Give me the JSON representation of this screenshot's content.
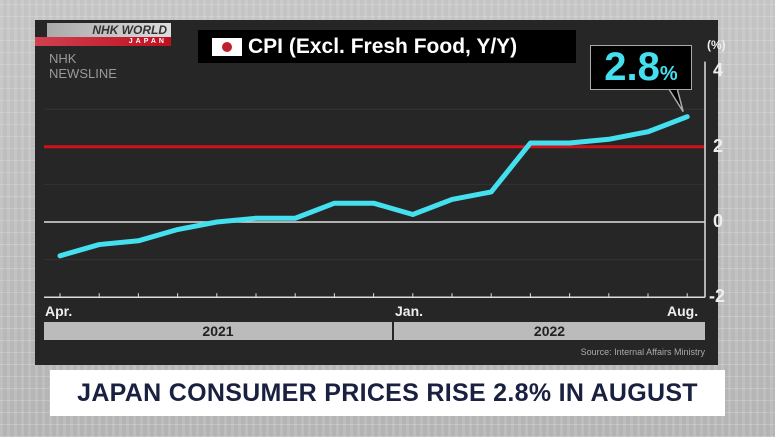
{
  "branding": {
    "nhk_world": "NHK WORLD",
    "japan": "JAPAN",
    "program": "NHK NEWSLINE"
  },
  "chart_title": "CPI (Excl. Fresh Food, Y/Y)",
  "callout": {
    "value": "2.8",
    "unit": "%"
  },
  "headline": "JAPAN CONSUMER PRICES RISE 2.8% IN AUGUST",
  "chart_data": {
    "type": "line",
    "title": "CPI (Excl. Fresh Food, Y/Y)",
    "ylabel": "(%)",
    "ylim": [
      -2,
      4
    ],
    "yticks": [
      "4",
      "2",
      "0",
      "-2"
    ],
    "x": [
      "Apr 2021",
      "May 2021",
      "Jun 2021",
      "Jul 2021",
      "Aug 2021",
      "Sep 2021",
      "Oct 2021",
      "Nov 2021",
      "Dec 2021",
      "Jan 2022",
      "Feb 2022",
      "Mar 2022",
      "Apr 2022",
      "May 2022",
      "Jun 2022",
      "Jul 2022",
      "Aug 2022"
    ],
    "values": [
      -0.9,
      -0.6,
      -0.5,
      -0.2,
      0.0,
      0.1,
      0.1,
      0.5,
      0.5,
      0.2,
      0.6,
      0.8,
      2.1,
      2.1,
      2.2,
      2.4,
      2.8
    ],
    "reference_line": {
      "value": 2,
      "color": "#d0101a"
    },
    "line_color": "#45e0f0",
    "x_labels": [
      "Apr.",
      "Jan.",
      "Aug."
    ],
    "years": [
      "2021",
      "2022"
    ],
    "source": "Source: Internal Affairs Ministry"
  }
}
